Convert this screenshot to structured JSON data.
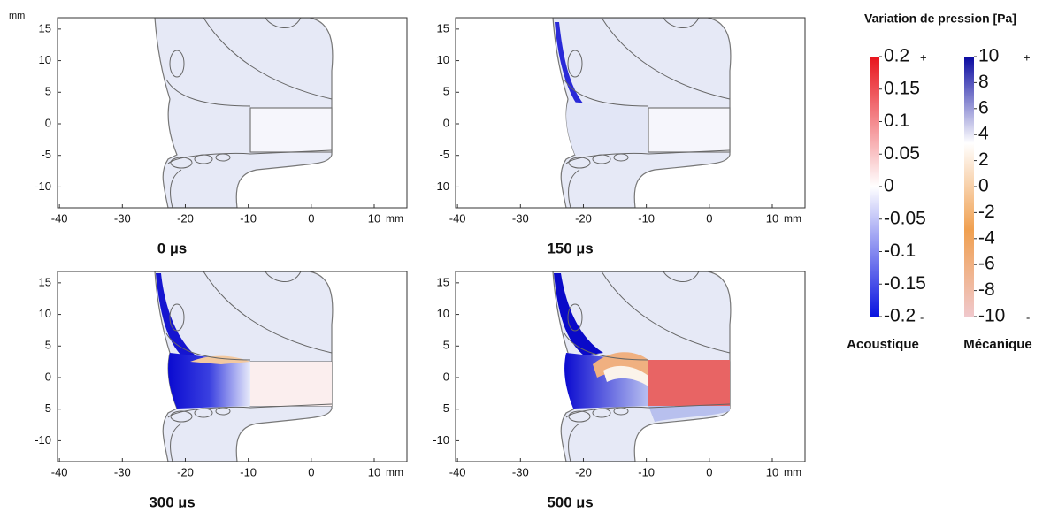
{
  "colorbar_title": "Variation de pression [Pa]",
  "panels": [
    {
      "title": "0 µs",
      "xlim": [
        -40.3,
        15.2
      ],
      "ylim": [
        -13.3,
        16.8
      ],
      "xticks": [
        -40,
        -30,
        -20,
        -10,
        0,
        10
      ],
      "yticks": [
        15,
        10,
        5,
        0,
        -5,
        -10
      ],
      "x_unit": "mm",
      "y_unit": "mm"
    },
    {
      "title": "150 µs",
      "xlim": [
        -40.3,
        15.2
      ],
      "ylim": [
        -13.3,
        16.8
      ],
      "xticks": [
        -40,
        -30,
        -20,
        -10,
        0,
        10
      ],
      "yticks": [
        15,
        10,
        5,
        0,
        -5,
        -10
      ],
      "x_unit": "mm"
    },
    {
      "title": "300 µs",
      "xlim": [
        -40.3,
        15.2
      ],
      "ylim": [
        -13.3,
        16.8
      ],
      "xticks": [
        -40,
        -30,
        -20,
        -10,
        0,
        10
      ],
      "yticks": [
        15,
        10,
        5,
        0,
        -5,
        -10
      ],
      "x_unit": "mm"
    },
    {
      "title": "500 µs",
      "xlim": [
        -40.3,
        15.2
      ],
      "ylim": [
        -13.3,
        16.8
      ],
      "xticks": [
        -40,
        -30,
        -20,
        -10,
        0,
        10
      ],
      "yticks": [
        15,
        10,
        5,
        0,
        -5,
        -10
      ],
      "x_unit": "mm"
    }
  ],
  "colorbars": [
    {
      "label": "Acoustique",
      "clim": [
        -0.2,
        0.2
      ],
      "ticks": [
        0.2,
        0.15,
        0.1,
        0.05,
        0,
        -0.05,
        -0.1,
        -0.15,
        -0.2
      ],
      "over_marker": "+",
      "under_marker": "-",
      "colors": [
        "#e8141c",
        "#ffffff",
        "#0a14e0"
      ]
    },
    {
      "label": "Mécanique",
      "clim": [
        -10,
        10
      ],
      "ticks": [
        10,
        8,
        6,
        4,
        2,
        0,
        -2,
        -4,
        -6,
        -8,
        -10
      ],
      "over_marker": "+",
      "under_marker": "-",
      "colors": [
        "#0a0aa0",
        "#ffffff",
        "#f0a050",
        "#f0c8cc"
      ]
    }
  ]
}
